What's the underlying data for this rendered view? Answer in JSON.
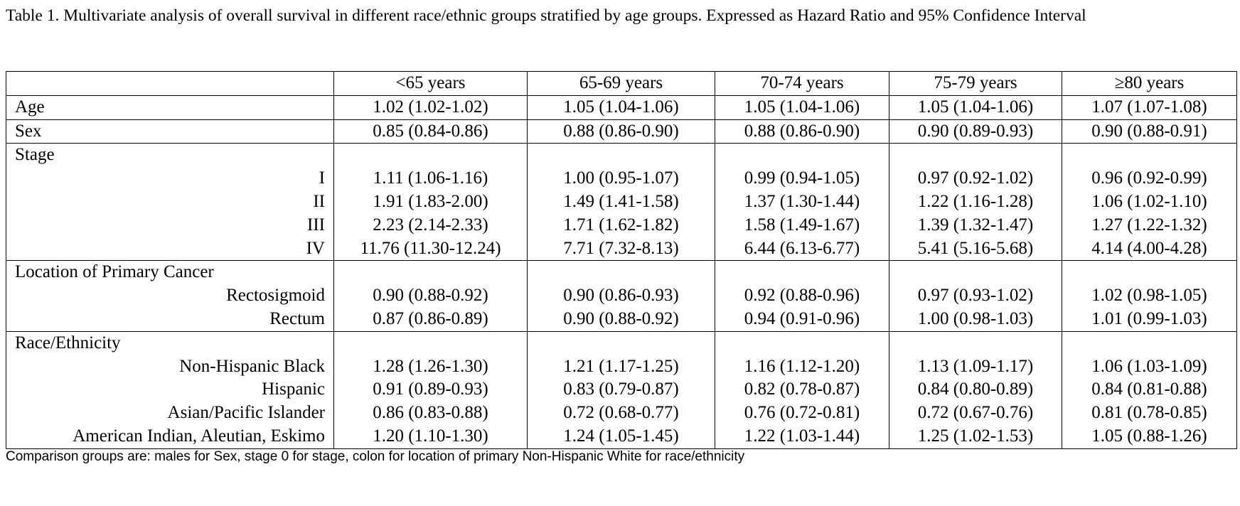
{
  "caption": "Table 1. Multivariate analysis of overall survival in different race/ethnic groups stratified by age groups. Expressed as Hazard Ratio and 95% Confidence Interval",
  "columns": [
    "",
    "<65 years",
    "65-69 years",
    "70-74 years",
    "75-79 years",
    "≥80 years"
  ],
  "sections": [
    {
      "header": null,
      "rows": [
        {
          "label": "Age",
          "values": [
            "1.02 (1.02-1.02)",
            "1.05 (1.04-1.06)",
            "1.05 (1.04-1.06)",
            "1.05 (1.04-1.06)",
            "1.07 (1.07-1.08)"
          ]
        }
      ]
    },
    {
      "header": null,
      "rows": [
        {
          "label": "Sex",
          "values": [
            "0.85 (0.84-0.86)",
            "0.88 (0.86-0.90)",
            "0.88 (0.86-0.90)",
            "0.90 (0.89-0.93)",
            "0.90 (0.88-0.91)"
          ]
        }
      ]
    },
    {
      "header": "Stage",
      "rows": [
        {
          "label": "I",
          "values": [
            "1.11 (1.06-1.16)",
            "1.00 (0.95-1.07)",
            "0.99 (0.94-1.05)",
            "0.97 (0.92-1.02)",
            "0.96 (0.92-0.99)"
          ]
        },
        {
          "label": "II",
          "values": [
            "1.91 (1.83-2.00)",
            "1.49 (1.41-1.58)",
            "1.37 (1.30-1.44)",
            "1.22 (1.16-1.28)",
            "1.06 (1.02-1.10)"
          ]
        },
        {
          "label": "III",
          "values": [
            "2.23 (2.14-2.33)",
            "1.71 (1.62-1.82)",
            "1.58 (1.49-1.67)",
            "1.39 (1.32-1.47)",
            "1.27 (1.22-1.32)"
          ]
        },
        {
          "label": "IV",
          "values": [
            "11.76 (11.30-12.24)",
            "7.71 (7.32-8.13)",
            "6.44 (6.13-6.77)",
            "5.41 (5.16-5.68)",
            "4.14 (4.00-4.28)"
          ]
        }
      ]
    },
    {
      "header": "Location of Primary Cancer",
      "rows": [
        {
          "label": "Rectosigmoid",
          "values": [
            "0.90 (0.88-0.92)",
            "0.90 (0.86-0.93)",
            "0.92 (0.88-0.96)",
            "0.97 (0.93-1.02)",
            "1.02 (0.98-1.05)"
          ]
        },
        {
          "label": "Rectum",
          "values": [
            "0.87 (0.86-0.89)",
            "0.90 (0.88-0.92)",
            "0.94 (0.91-0.96)",
            "1.00 (0.98-1.03)",
            "1.01 (0.99-1.03)"
          ]
        }
      ]
    },
    {
      "header": "Race/Ethnicity",
      "rows": [
        {
          "label": "Non-Hispanic Black",
          "values": [
            "1.28 (1.26-1.30)",
            "1.21 (1.17-1.25)",
            "1.16 (1.12-1.20)",
            "1.13 (1.09-1.17)",
            "1.06 (1.03-1.09)"
          ]
        },
        {
          "label": "Hispanic",
          "values": [
            "0.91 (0.89-0.93)",
            "0.83 (0.79-0.87)",
            "0.82 (0.78-0.87)",
            "0.84 (0.80-0.89)",
            "0.84 (0.81-0.88)"
          ]
        },
        {
          "label": "Asian/Pacific Islander",
          "values": [
            "0.86 (0.83-0.88)",
            "0.72 (0.68-0.77)",
            "0.76 (0.72-0.81)",
            "0.72 (0.67-0.76)",
            "0.81 (0.78-0.85)"
          ]
        },
        {
          "label": "American Indian, Aleutian, Eskimo",
          "values": [
            "1.20 (1.10-1.30)",
            "1.24 (1.05-1.45)",
            "1.22 (1.03-1.44)",
            "1.25 (1.02-1.53)",
            "1.05 (0.88-1.26)"
          ]
        }
      ]
    }
  ],
  "footnote": "Comparison groups are: males for Sex, stage 0 for stage, colon for location of primary Non-Hispanic White for race/ethnicity"
}
